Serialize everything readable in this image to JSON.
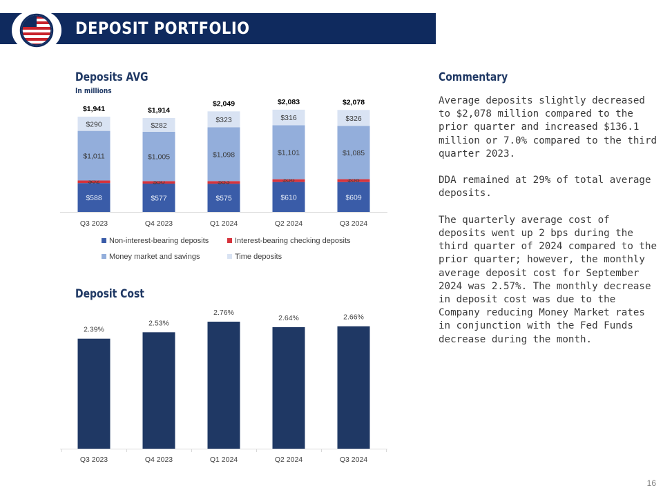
{
  "header": {
    "title": "DEPOSIT PORTFOLIO",
    "logo_icon": "flag-globe-icon"
  },
  "colors": {
    "header_bg": "#0f2a5e",
    "non_interest": "#3a5ca8",
    "interest_checking": "#d6333c",
    "money_market": "#93aedb",
    "time_deposits": "#d9e3f3",
    "cost_bar": "#1f3864"
  },
  "deposits_chart": {
    "title": "Deposits AVG",
    "subtitle": "In millions"
  },
  "cost_chart_section": {
    "title": "Deposit Cost"
  },
  "commentary": {
    "title": "Commentary",
    "paragraphs": [
      "Average deposits slightly decreased to $2,078 million compared to the prior quarter and increased $136.1 million or 7.0% compared to the third quarter 2023.",
      "DDA remained at 29% of total average deposits.",
      "The quarterly average cost of deposits went up 2 bps during the third quarter of 2024 compared to the prior quarter; however, the monthly average deposit cost for September 2024 was 2.57%. The monthly decrease in deposit cost was due to the Company reducing Money Market rates in conjunction with the Fed Funds decrease during the month."
    ]
  },
  "page_number": "16",
  "chart_data": [
    {
      "type": "bar",
      "stacked": true,
      "title": "Deposits AVG",
      "subtitle": "In millions",
      "categories": [
        "Q3 2023",
        "Q4 2023",
        "Q1 2024",
        "Q2 2024",
        "Q3 2024"
      ],
      "series": [
        {
          "name": "Non-interest-bearing deposits",
          "values": [
            588,
            577,
            575,
            610,
            609
          ],
          "labels": [
            "$588",
            "$577",
            "$575",
            "$610",
            "$609"
          ]
        },
        {
          "name": "Interest-bearing checking deposits",
          "values": [
            52,
            50,
            53,
            56,
            58
          ],
          "labels": [
            "$52",
            "$50",
            "$53",
            "$56",
            "$58"
          ]
        },
        {
          "name": "Money market and savings",
          "values": [
            1011,
            1005,
            1098,
            1101,
            1085
          ],
          "labels": [
            "$1,011",
            "$1,005",
            "$1,098",
            "$1,101",
            "$1,085"
          ]
        },
        {
          "name": "Time deposits",
          "values": [
            290,
            282,
            323,
            316,
            326
          ],
          "labels": [
            "$290",
            "$282",
            "$323",
            "$316",
            "$326"
          ]
        }
      ],
      "totals": [
        1941,
        1914,
        2049,
        2083,
        2078
      ],
      "total_labels": [
        "$1,941",
        "$1,914",
        "$2,049",
        "$2,083",
        "$2,078"
      ],
      "legend_position": "bottom",
      "grid": false
    },
    {
      "type": "bar",
      "title": "Deposit Cost",
      "categories": [
        "Q3 2023",
        "Q4 2023",
        "Q1 2024",
        "Q2 2024",
        "Q3 2024"
      ],
      "values": [
        2.39,
        2.53,
        2.76,
        2.64,
        2.66
      ],
      "labels": [
        "2.39%",
        "2.53%",
        "2.76%",
        "2.64%",
        "2.66%"
      ],
      "ylim": [
        0,
        2.84
      ],
      "grid": false
    }
  ]
}
